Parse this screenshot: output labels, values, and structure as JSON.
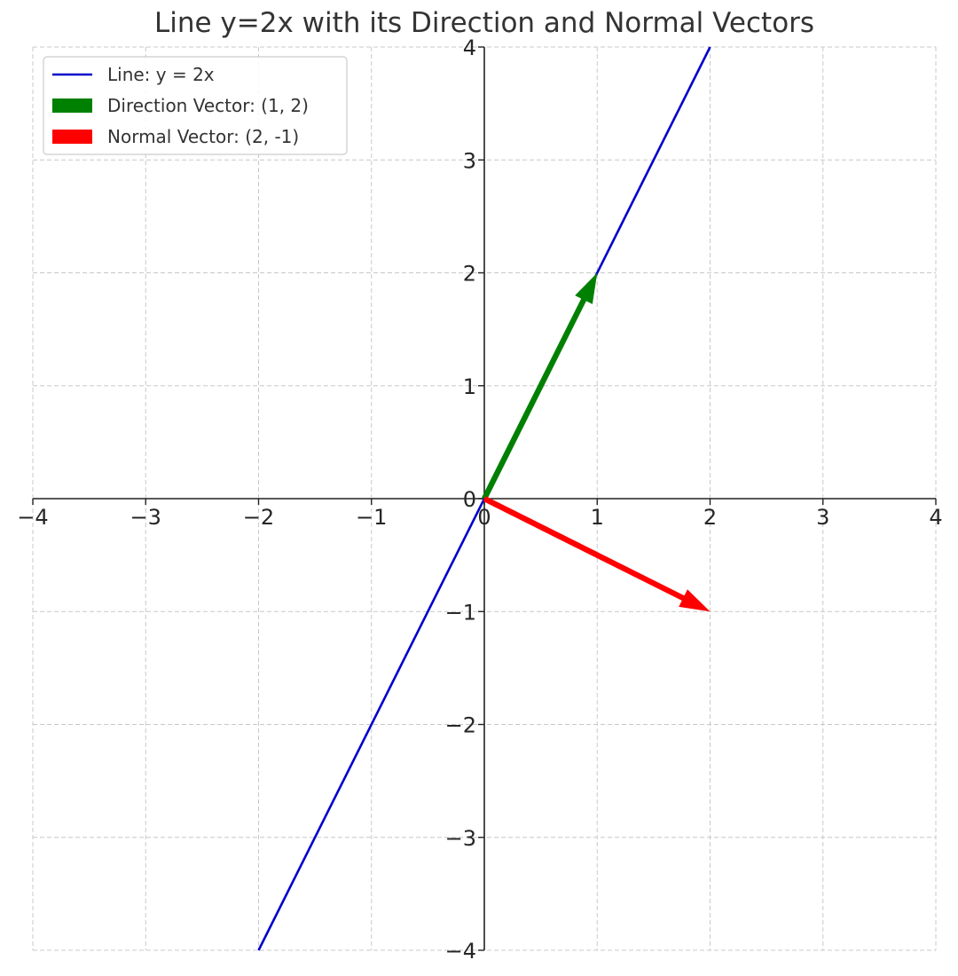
{
  "chart_data": {
    "type": "line",
    "title": "Line y=2x with its Direction and Normal Vectors",
    "xlabel": "",
    "ylabel": "",
    "xlim": [
      -4,
      4
    ],
    "ylim": [
      -4,
      4
    ],
    "xticks": [
      -4,
      -3,
      -2,
      -1,
      0,
      1,
      2,
      3,
      4
    ],
    "yticks": [
      -4,
      -3,
      -2,
      -1,
      0,
      1,
      2,
      3,
      4
    ],
    "xtick_labels": [
      "−4",
      "−3",
      "−2",
      "−1",
      "0",
      "1",
      "2",
      "3",
      "4"
    ],
    "ytick_labels": [
      "−4",
      "−3",
      "−2",
      "−1",
      "0",
      "1",
      "2",
      "3",
      "4"
    ],
    "grid": true,
    "axes_through_origin": true,
    "legend_position": "top-left",
    "series": [
      {
        "name": "Line: y = 2x",
        "kind": "line",
        "color": "#0000cc",
        "x": [
          -2,
          2
        ],
        "y": [
          -4,
          4
        ]
      },
      {
        "name": "Direction Vector: (1, 2)",
        "kind": "arrow",
        "color": "#008000",
        "start": [
          0,
          0
        ],
        "end": [
          1,
          2
        ]
      },
      {
        "name": "Normal Vector: (2, -1)",
        "kind": "arrow",
        "color": "#ff0000",
        "start": [
          0,
          0
        ],
        "end": [
          2,
          -1
        ]
      }
    ]
  }
}
